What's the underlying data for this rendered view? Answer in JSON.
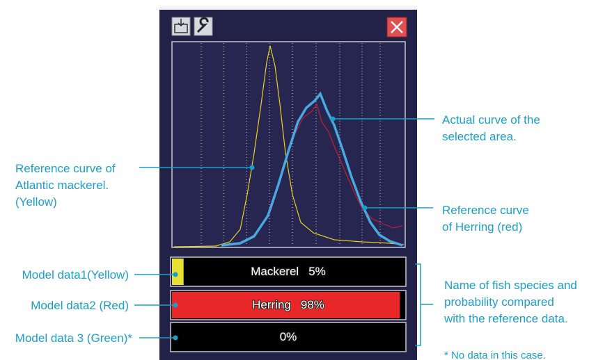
{
  "annotations": {
    "actual_curve": [
      "Actual curve of the",
      "selected area."
    ],
    "mackerel_curve": [
      "Reference curve of",
      "Atlantic mackerel.",
      "(Yellow)"
    ],
    "herring_curve": [
      "Reference curve",
      "of Herring (red)"
    ],
    "model_1": "Model data1(Yellow)",
    "model_2": "Model data2 (Red)",
    "model_3": "Model data 3 (Green)*",
    "species_probability": [
      "Name of fish species and",
      "probability compared",
      "with the reference data."
    ],
    "footnote": "* No data in this case."
  },
  "bars": [
    {
      "name": "Mackerel",
      "percent_label": "5%",
      "percent": 5,
      "color": "#e8e030"
    },
    {
      "name": "Herring",
      "percent_label": "98%",
      "percent": 98,
      "color": "#e82828"
    },
    {
      "percent_label": "0%",
      "percent": 0,
      "color": "#20c020"
    }
  ]
}
